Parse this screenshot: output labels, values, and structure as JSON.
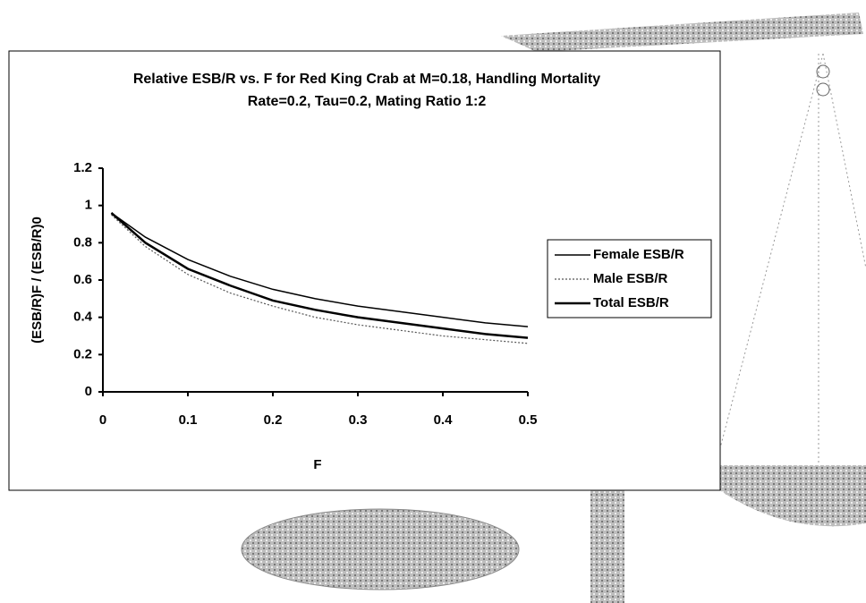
{
  "chart_data": {
    "type": "line",
    "title": "Relative ESB/R vs. F for Red King Crab at M=0.18, Handling Mortality Rate=0.2, Tau=0.2, Mating Ratio 1:2",
    "xlabel": "F",
    "ylabel": "(ESB/R)F / (ESB/R)0",
    "x": [
      0.01,
      0.05,
      0.1,
      0.15,
      0.2,
      0.25,
      0.3,
      0.35,
      0.4,
      0.45,
      0.5
    ],
    "series": [
      {
        "name": "Female ESB/R",
        "color": "#000000",
        "values": [
          0.96,
          0.83,
          0.71,
          0.62,
          0.55,
          0.5,
          0.46,
          0.43,
          0.4,
          0.37,
          0.35
        ]
      },
      {
        "name": "Male ESB/R",
        "color": "#555555",
        "values": [
          0.95,
          0.78,
          0.63,
          0.53,
          0.46,
          0.4,
          0.36,
          0.33,
          0.3,
          0.28,
          0.26
        ]
      },
      {
        "name": "Total ESB/R",
        "color": "#000000",
        "values": [
          0.96,
          0.8,
          0.66,
          0.57,
          0.49,
          0.44,
          0.4,
          0.37,
          0.34,
          0.31,
          0.29
        ]
      }
    ],
    "xlim": [
      0,
      0.5
    ],
    "xticks": [
      0,
      0.1,
      0.2,
      0.3,
      0.4,
      0.5
    ],
    "ylim": [
      0,
      1.2
    ],
    "yticks": [
      0,
      0.2,
      0.4,
      0.6,
      0.8,
      1,
      1.2
    ],
    "grid": false,
    "legend": "right"
  }
}
